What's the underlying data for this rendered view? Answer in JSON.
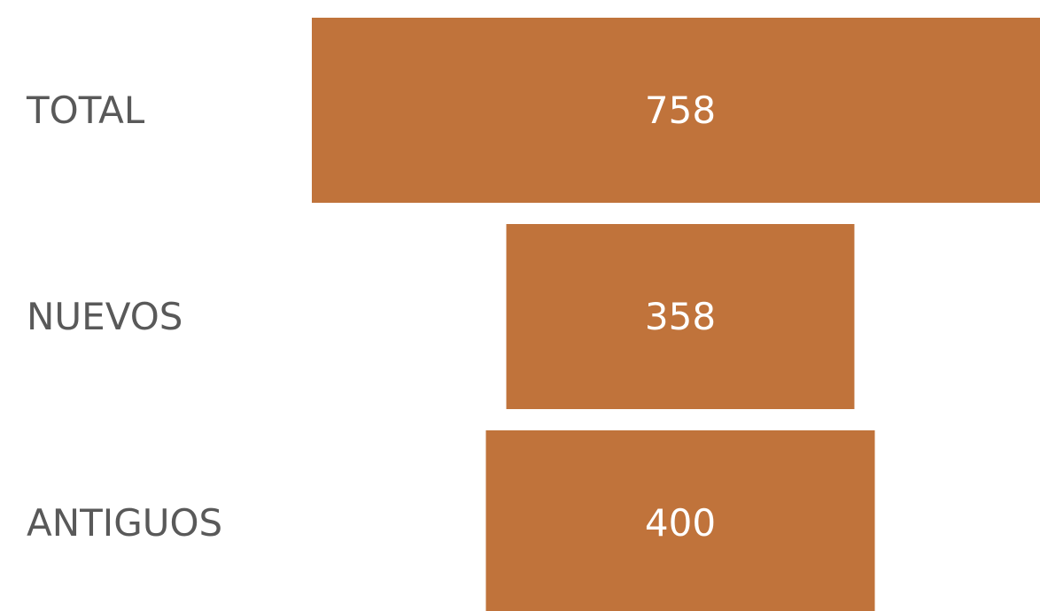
{
  "chart_data": {
    "type": "funnel",
    "categories": [
      "TOTAL",
      "NUEVOS",
      "ANTIGUOS"
    ],
    "values": [
      758,
      358,
      400
    ],
    "color": "#c0733b"
  }
}
